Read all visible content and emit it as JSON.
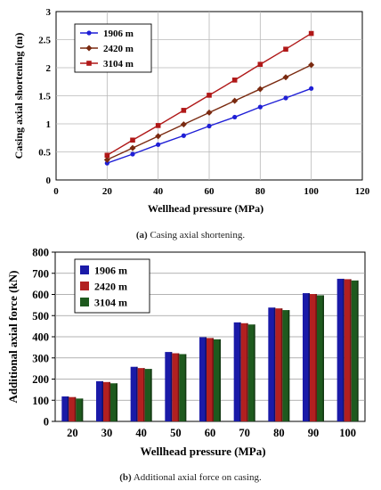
{
  "chart_data": [
    {
      "type": "line",
      "caption_label": "(a)",
      "caption_text": "Casing axial shortening.",
      "xlabel": "Wellhead pressure (MPa)",
      "ylabel": "Casing axial shortening (m)",
      "xlim": [
        0,
        120
      ],
      "ylim": [
        0,
        3
      ],
      "xticks": [
        "0",
        "20",
        "40",
        "60",
        "80",
        "100",
        "120"
      ],
      "yticks": [
        "0",
        "0.5",
        "1",
        "1.5",
        "2",
        "2.5",
        "3"
      ],
      "grid": true,
      "legend_position": "top-left",
      "x": [
        20,
        30,
        40,
        50,
        60,
        70,
        80,
        90,
        100
      ],
      "series": [
        {
          "name": "1906  m",
          "color": "#1f1fd6",
          "marker": "circle",
          "values": [
            0.3,
            0.46,
            0.63,
            0.79,
            0.96,
            1.12,
            1.3,
            1.46,
            1.63
          ]
        },
        {
          "name": "2420  m",
          "color": "#7a2a10",
          "marker": "diamond",
          "values": [
            0.36,
            0.57,
            0.78,
            0.99,
            1.2,
            1.41,
            1.62,
            1.83,
            2.05
          ]
        },
        {
          "name": "3104  m",
          "color": "#b01818",
          "marker": "square",
          "values": [
            0.44,
            0.71,
            0.97,
            1.24,
            1.51,
            1.78,
            2.06,
            2.33,
            2.61
          ]
        }
      ]
    },
    {
      "type": "bar",
      "caption_label": "(b)",
      "caption_text": "Additional axial force on casing.",
      "xlabel": "Wellhead pressure (MPa)",
      "ylabel": "Additional axial force (kN)",
      "ylim": [
        0,
        800
      ],
      "yticks": [
        "0",
        "100",
        "200",
        "300",
        "400",
        "500",
        "600",
        "700",
        "800"
      ],
      "categories": [
        "20",
        "30",
        "40",
        "50",
        "60",
        "70",
        "80",
        "90",
        "100"
      ],
      "grid": true,
      "legend_position": "top-left",
      "series": [
        {
          "name": "1906  m",
          "color": "#1a1aa8",
          "values": [
            118,
            190,
            258,
            328,
            398,
            468,
            538,
            606,
            674
          ]
        },
        {
          "name": "2420  m",
          "color": "#b22020",
          "values": [
            115,
            186,
            252,
            322,
            394,
            464,
            534,
            602,
            672
          ]
        },
        {
          "name": "3104  m",
          "color": "#1e5a1e",
          "values": [
            108,
            180,
            248,
            318,
            388,
            458,
            526,
            596,
            666
          ]
        }
      ]
    }
  ]
}
